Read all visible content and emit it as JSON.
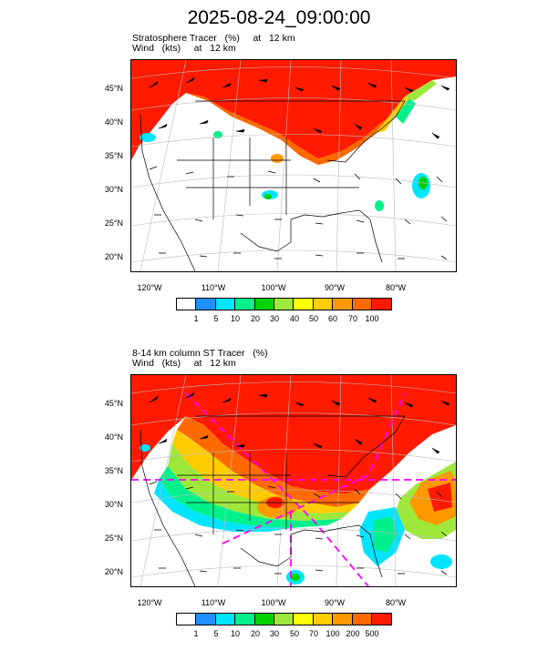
{
  "title": "2025-08-24_09:00:00",
  "colors": [
    "#ffffff",
    "#1e90ff",
    "#00e5ff",
    "#00f08c",
    "#00d200",
    "#9ee83c",
    "#ffff00",
    "#ffcc00",
    "#ff9900",
    "#ff6a00",
    "#ff1a00"
  ],
  "panel1": {
    "label_line1": "Stratosphere Tracer   (%)     at   12 km",
    "label_line2": "Wind   (kts)     at   12 km",
    "lat_labels": [
      "45°N",
      "40°N",
      "35°N",
      "30°N",
      "25°N",
      "20°N"
    ],
    "lon_labels": [
      "120°W",
      "110°W",
      "100°W",
      "90°W",
      "80°W"
    ],
    "colorbar_labels": [
      "1",
      "5",
      "10",
      "20",
      "30",
      "40",
      "50",
      "60",
      "70",
      "100"
    ]
  },
  "panel2": {
    "label_line1": "8-14 km column ST Tracer   (%)",
    "label_line2": "Wind   (kts)     at   12 km",
    "lat_labels": [
      "45°N",
      "40°N",
      "35°N",
      "30°N",
      "25°N",
      "20°N"
    ],
    "lon_labels": [
      "120°W",
      "110°W",
      "100°W",
      "90°W",
      "80°W"
    ],
    "colorbar_labels": [
      "1",
      "5",
      "10",
      "20",
      "30",
      "50",
      "70",
      "100",
      "200",
      "500"
    ]
  }
}
